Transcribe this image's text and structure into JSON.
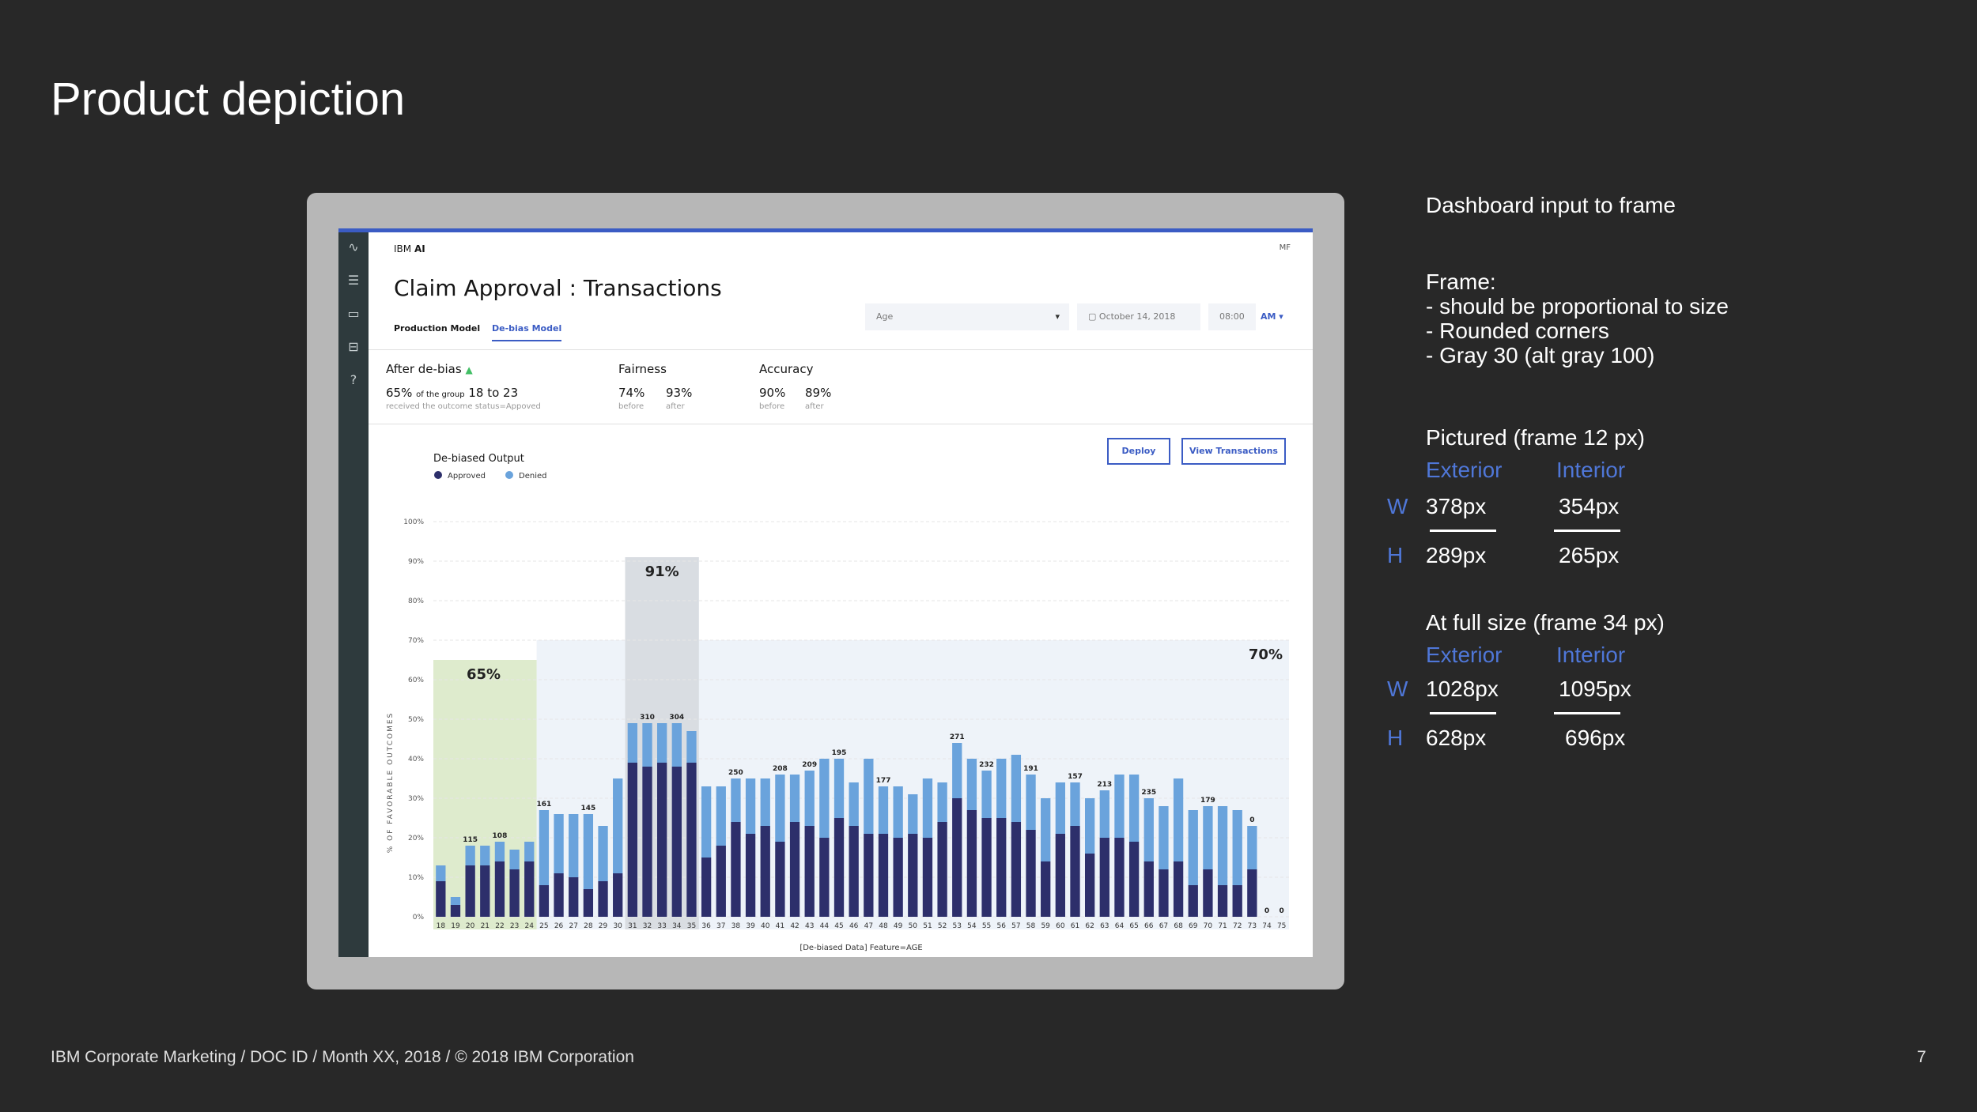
{
  "slide": {
    "title": "Product depiction",
    "footer": "IBM Corporate Marketing / DOC ID / Month XX, 2018 / © 2018 IBM Corporation",
    "page_number": "7"
  },
  "notes": {
    "heading": "Dashboard input to frame",
    "frame_heading": "Frame:",
    "frame_items": [
      "-  should be proportional to size",
      "-  Rounded corners",
      "- Gray 30 (alt gray 100)"
    ],
    "pictured": {
      "heading": "Pictured (frame 12 px)",
      "col_exterior": "Exterior",
      "col_interior": "Interior",
      "w_label": "W",
      "h_label": "H",
      "w_exterior": "378px",
      "w_interior": "354px",
      "h_exterior": "289px",
      "h_interior": "265px"
    },
    "full": {
      "heading": "At full size (frame 34 px)",
      "col_exterior": "Exterior",
      "col_interior": "Interior",
      "w_label": "W",
      "h_label": "H",
      "w_exterior": "1028px",
      "w_interior": "1095px",
      "h_exterior": "628px",
      "h_interior": "696px"
    }
  },
  "app": {
    "brand_prefix": "IBM",
    "brand_suffix": "AI",
    "user_initials": "MF",
    "title": "Claim Approval : Transactions",
    "tabs": [
      "Production Model",
      "De-bias Model"
    ],
    "controls": {
      "feature": "Age",
      "date": "October 14, 2018",
      "time": "08:00",
      "ampm": "AM"
    },
    "metrics": {
      "after_label": "After de-bias",
      "after_value_pct": "65%",
      "after_value_mid": "of the group",
      "after_value_range": "18 to 23",
      "after_sub": "received the outcome status=Appoved",
      "fairness_label": "Fairness",
      "fairness_before": "74%",
      "fairness_after": "93%",
      "accuracy_label": "Accuracy",
      "accuracy_before": "90%",
      "accuracy_after": "89%",
      "before_word": "before",
      "after_word": "after"
    },
    "buttons": {
      "deploy": "Deploy",
      "view": "View Transactions"
    }
  },
  "colors": {
    "approved": "#2d2f6b",
    "denied": "#6aa3dc",
    "accent": "#3b5cc4",
    "highlight_green": "#deebcd",
    "highlight_gray": "#d9dde2",
    "region_blue": "#eef3f9"
  },
  "chart_data": {
    "type": "bar",
    "title": "De-biased Output",
    "xlabel": "[De-biased Data] Feature=AGE",
    "ylabel": "% OF FAVORABLE OUTCOMES",
    "ylim": [
      0,
      100
    ],
    "yticks": [
      "0%",
      "10%",
      "20%",
      "30%",
      "40%",
      "50%",
      "60%",
      "70%",
      "80%",
      "90%",
      "100%"
    ],
    "legend": [
      "Approved",
      "Denied"
    ],
    "legend_position": "top-left",
    "grid": true,
    "categories": [
      "18",
      "19",
      "20",
      "21",
      "22",
      "23",
      "24",
      "25",
      "26",
      "27",
      "28",
      "29",
      "30",
      "31",
      "32",
      "33",
      "34",
      "35",
      "36",
      "37",
      "38",
      "39",
      "40",
      "41",
      "42",
      "43",
      "44",
      "45",
      "46",
      "47",
      "48",
      "49",
      "50",
      "51",
      "52",
      "53",
      "54",
      "55",
      "56",
      "57",
      "58",
      "59",
      "60",
      "61",
      "62",
      "63",
      "64",
      "65",
      "66",
      "67",
      "68",
      "69",
      "70",
      "71",
      "72",
      "73",
      "74",
      "75"
    ],
    "series": [
      {
        "name": "Approved",
        "values": [
          9,
          3,
          13,
          13,
          14,
          12,
          14,
          8,
          11,
          10,
          7,
          9,
          11,
          39,
          38,
          39,
          38,
          39,
          15,
          18,
          24,
          21,
          23,
          19,
          24,
          23,
          20,
          25,
          23,
          21,
          21,
          20,
          21,
          20,
          24,
          30,
          27,
          25,
          25,
          24,
          22,
          14,
          21,
          23,
          16,
          20,
          20,
          19,
          14,
          12,
          14,
          8,
          12,
          8,
          8,
          12,
          0,
          0
        ]
      },
      {
        "name": "Denied",
        "values": [
          4,
          2,
          5,
          5,
          5,
          5,
          5,
          19,
          15,
          16,
          19,
          14,
          24,
          10,
          11,
          10,
          11,
          8,
          18,
          15,
          11,
          14,
          12,
          17,
          12,
          14,
          20,
          15,
          11,
          19,
          12,
          13,
          10,
          15,
          10,
          14,
          13,
          12,
          15,
          17,
          14,
          16,
          13,
          11,
          14,
          12,
          16,
          17,
          16,
          16,
          21,
          19,
          16,
          20,
          19,
          11,
          0,
          0
        ]
      }
    ],
    "bar_labels": [
      {
        "category": "20",
        "text": "115"
      },
      {
        "category": "22",
        "text": "108"
      },
      {
        "category": "25",
        "text": "161"
      },
      {
        "category": "28",
        "text": "145"
      },
      {
        "category": "32",
        "text": "310"
      },
      {
        "category": "34",
        "text": "304"
      },
      {
        "category": "38",
        "text": "250"
      },
      {
        "category": "41",
        "text": "208"
      },
      {
        "category": "43",
        "text": "209"
      },
      {
        "category": "45",
        "text": "195"
      },
      {
        "category": "48",
        "text": "177"
      },
      {
        "category": "53",
        "text": "271"
      },
      {
        "category": "55",
        "text": "232"
      },
      {
        "category": "58",
        "text": "191"
      },
      {
        "category": "61",
        "text": "157"
      },
      {
        "category": "63",
        "text": "213"
      },
      {
        "category": "66",
        "text": "235"
      },
      {
        "category": "70",
        "text": "179"
      },
      {
        "category": "73",
        "text": "0"
      },
      {
        "category": "74",
        "text": "0"
      },
      {
        "category": "75",
        "text": "0"
      }
    ],
    "highlights": [
      {
        "from": "18",
        "to": "24",
        "value": 65,
        "label": "65%",
        "color": "#deebcd"
      },
      {
        "from": "31",
        "to": "35",
        "value": 91,
        "label": "91%",
        "color": "#d9dde2"
      },
      {
        "from": "25",
        "to": "75",
        "value": 70,
        "label": "70%",
        "color": "#eef3f9"
      }
    ]
  }
}
